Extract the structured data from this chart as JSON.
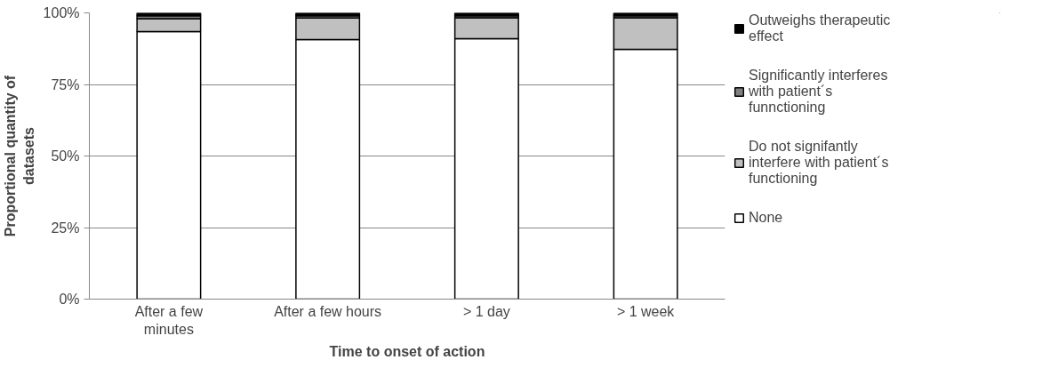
{
  "chart_data": {
    "type": "bar",
    "stacked": true,
    "xlabel": "Time to onset of action",
    "ylabel": "Proportional quantity of datasets",
    "categories": [
      "After a few minutes",
      "After a few hours",
      "> 1 day",
      "> 1 week"
    ],
    "series": [
      {
        "name": "None",
        "color": "#ffffff",
        "values": [
          93.5,
          90.7,
          91,
          87.3
        ]
      },
      {
        "name": "Do not signifantly interfere with patient´s functioning",
        "color": "#c0c0c0",
        "values": [
          4.5,
          7.5,
          7.3,
          11
        ]
      },
      {
        "name": "Significantly interferes with patient´s funnctioning",
        "color": "#808080",
        "values": [
          1,
          0.8,
          0.7,
          0.7
        ]
      },
      {
        "name": "Outweighs therapeutic effect",
        "color": "#000000",
        "values": [
          1,
          1,
          1,
          1
        ]
      }
    ],
    "ylim": [
      0,
      100
    ],
    "yticks": [
      {
        "value": 0,
        "label": "0%"
      },
      {
        "value": 25,
        "label": "25%"
      },
      {
        "value": 50,
        "label": "50%"
      },
      {
        "value": 75,
        "label": "75%"
      },
      {
        "value": 100,
        "label": "100%"
      }
    ],
    "grid": "y",
    "legend": "right"
  }
}
